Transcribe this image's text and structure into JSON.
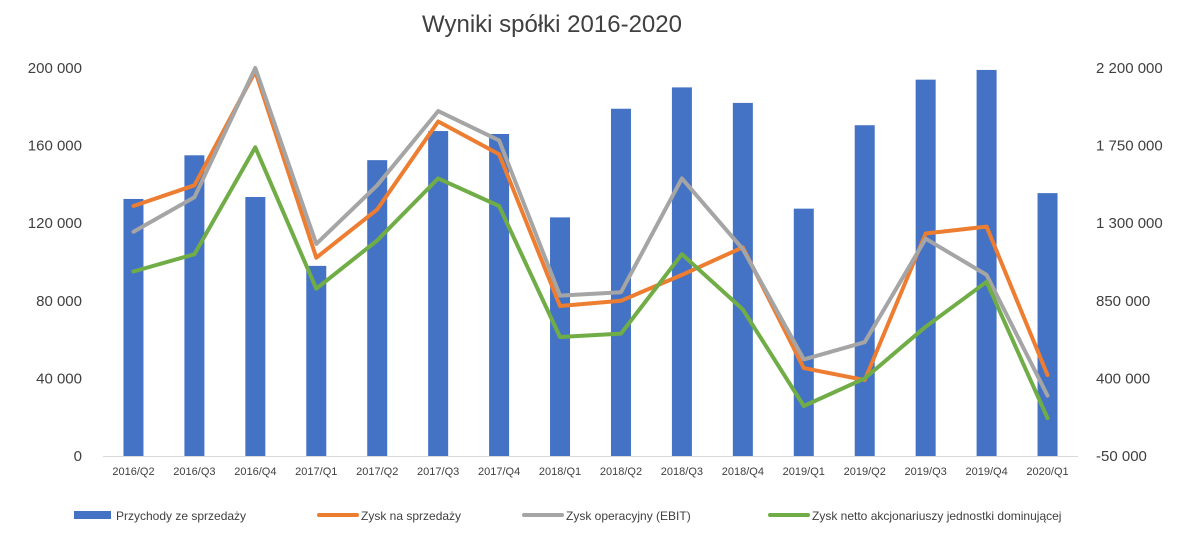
{
  "chart_data": {
    "type": "bar",
    "title": "Wyniki spółki 2016-2020",
    "categories": [
      "2016/Q2",
      "2016/Q3",
      "2016/Q4",
      "2017/Q1",
      "2017/Q2",
      "2017/Q3",
      "2017/Q4",
      "2018/Q1",
      "2018/Q2",
      "2018/Q3",
      "2018/Q4",
      "2019/Q1",
      "2019/Q2",
      "2019/Q3",
      "2019/Q4",
      "2020/Q1"
    ],
    "left_axis": {
      "ylim": [
        0,
        200000
      ],
      "ticks": [
        "0",
        "40 000",
        "80 000",
        "120 000",
        "160 000",
        "200 000"
      ]
    },
    "right_axis": {
      "ylim": [
        -50000,
        2200000
      ],
      "ticks": [
        "-50 000",
        "400 000",
        "850 000",
        "1 300 000",
        "1 750 000",
        "2 200 000"
      ]
    },
    "grid": false,
    "legend_position": "bottom",
    "series": [
      {
        "name": "Przychody ze sprzedaży",
        "kind": "bar",
        "axis": "left",
        "color": "#4472C4",
        "values": [
          132500,
          155000,
          133500,
          98000,
          152500,
          167500,
          166000,
          123000,
          179000,
          190000,
          182000,
          127500,
          170500,
          194000,
          199000,
          135500
        ]
      },
      {
        "name": "Zysk na sprzedaży",
        "kind": "line",
        "axis": "right",
        "color": "#ED7D31",
        "values": [
          1400000,
          1520000,
          2180000,
          1100000,
          1380000,
          1890000,
          1700000,
          820000,
          850000,
          1000000,
          1160000,
          460000,
          390000,
          1240000,
          1280000,
          420000
        ]
      },
      {
        "name": "Zysk operacyjny (EBIT)",
        "kind": "line",
        "axis": "right",
        "color": "#A5A5A5",
        "values": [
          1250000,
          1450000,
          2200000,
          1180000,
          1520000,
          1950000,
          1780000,
          880000,
          900000,
          1560000,
          1150000,
          510000,
          610000,
          1210000,
          1000000,
          300000
        ]
      },
      {
        "name": "Zysk netto akcjonariuszy jednostki dominującej",
        "kind": "line",
        "axis": "right",
        "color": "#70AD47",
        "values": [
          1020000,
          1120000,
          1740000,
          920000,
          1200000,
          1560000,
          1400000,
          640000,
          660000,
          1120000,
          800000,
          240000,
          400000,
          700000,
          960000,
          170000
        ]
      }
    ]
  }
}
